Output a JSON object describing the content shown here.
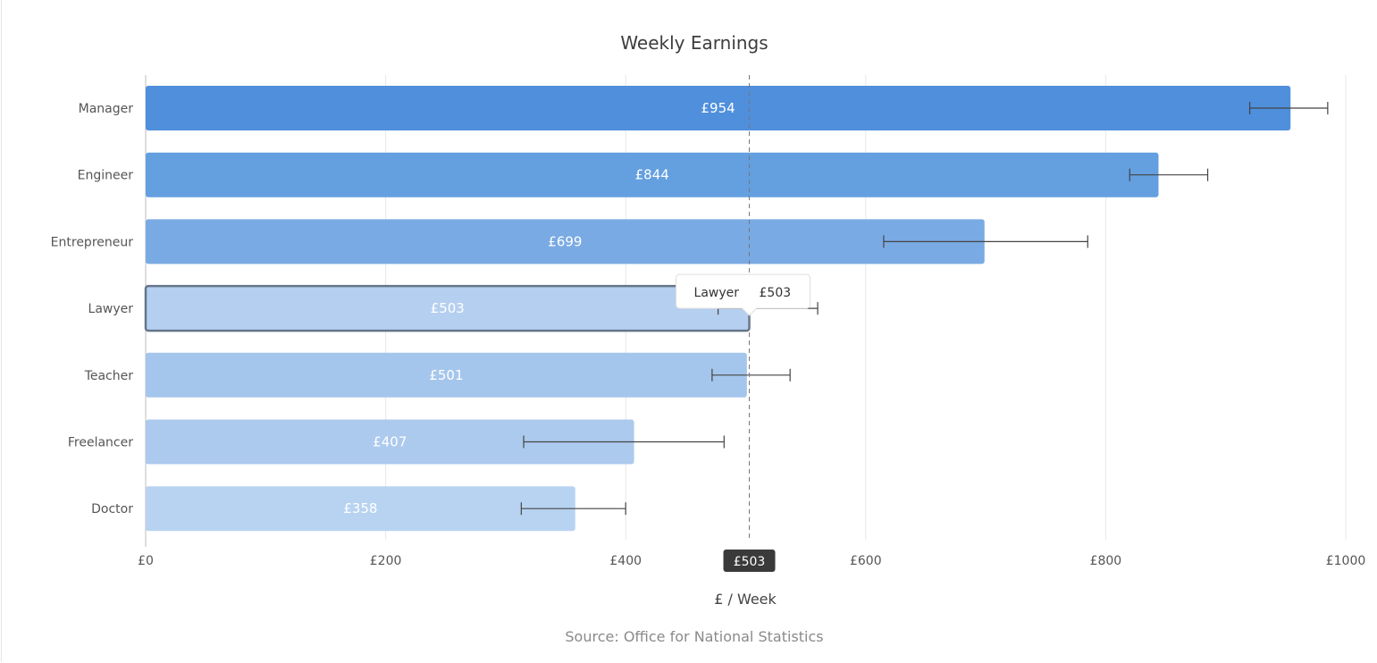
{
  "chart_data": {
    "type": "bar",
    "orientation": "horizontal",
    "title": "Weekly Earnings",
    "xlabel": "£ / Week",
    "source": "Source: Office for National Statistics",
    "categories": [
      "Manager",
      "Engineer",
      "Entrepreneur",
      "Lawyer",
      "Teacher",
      "Freelancer",
      "Doctor"
    ],
    "values": [
      954,
      844,
      699,
      503,
      501,
      407,
      358
    ],
    "value_labels": [
      "£954",
      "£844",
      "£699",
      "£503",
      "£501",
      "£407",
      "£358"
    ],
    "error_bars": [
      [
        920,
        985
      ],
      [
        820,
        885
      ],
      [
        615,
        785
      ],
      [
        477,
        560
      ],
      [
        472,
        537
      ],
      [
        315,
        482
      ],
      [
        313,
        400
      ]
    ],
    "xlim": [
      0,
      1000
    ],
    "xticks": [
      0,
      200,
      400,
      600,
      800,
      1000
    ],
    "xtick_labels": [
      "£0",
      "£200",
      "£400",
      "£600",
      "£800",
      "£1000"
    ],
    "grid": true,
    "colors": [
      "#4f8fdc",
      "#649fe0",
      "#7aaae3",
      "#b5cff0",
      "#a5c6ec",
      "#accaee",
      "#b8d3f1"
    ],
    "highlight": {
      "category": "Lawyer",
      "value": 503,
      "tooltip_label": "Lawyer",
      "tooltip_value": "£503",
      "crosshair_label": "£503"
    }
  }
}
